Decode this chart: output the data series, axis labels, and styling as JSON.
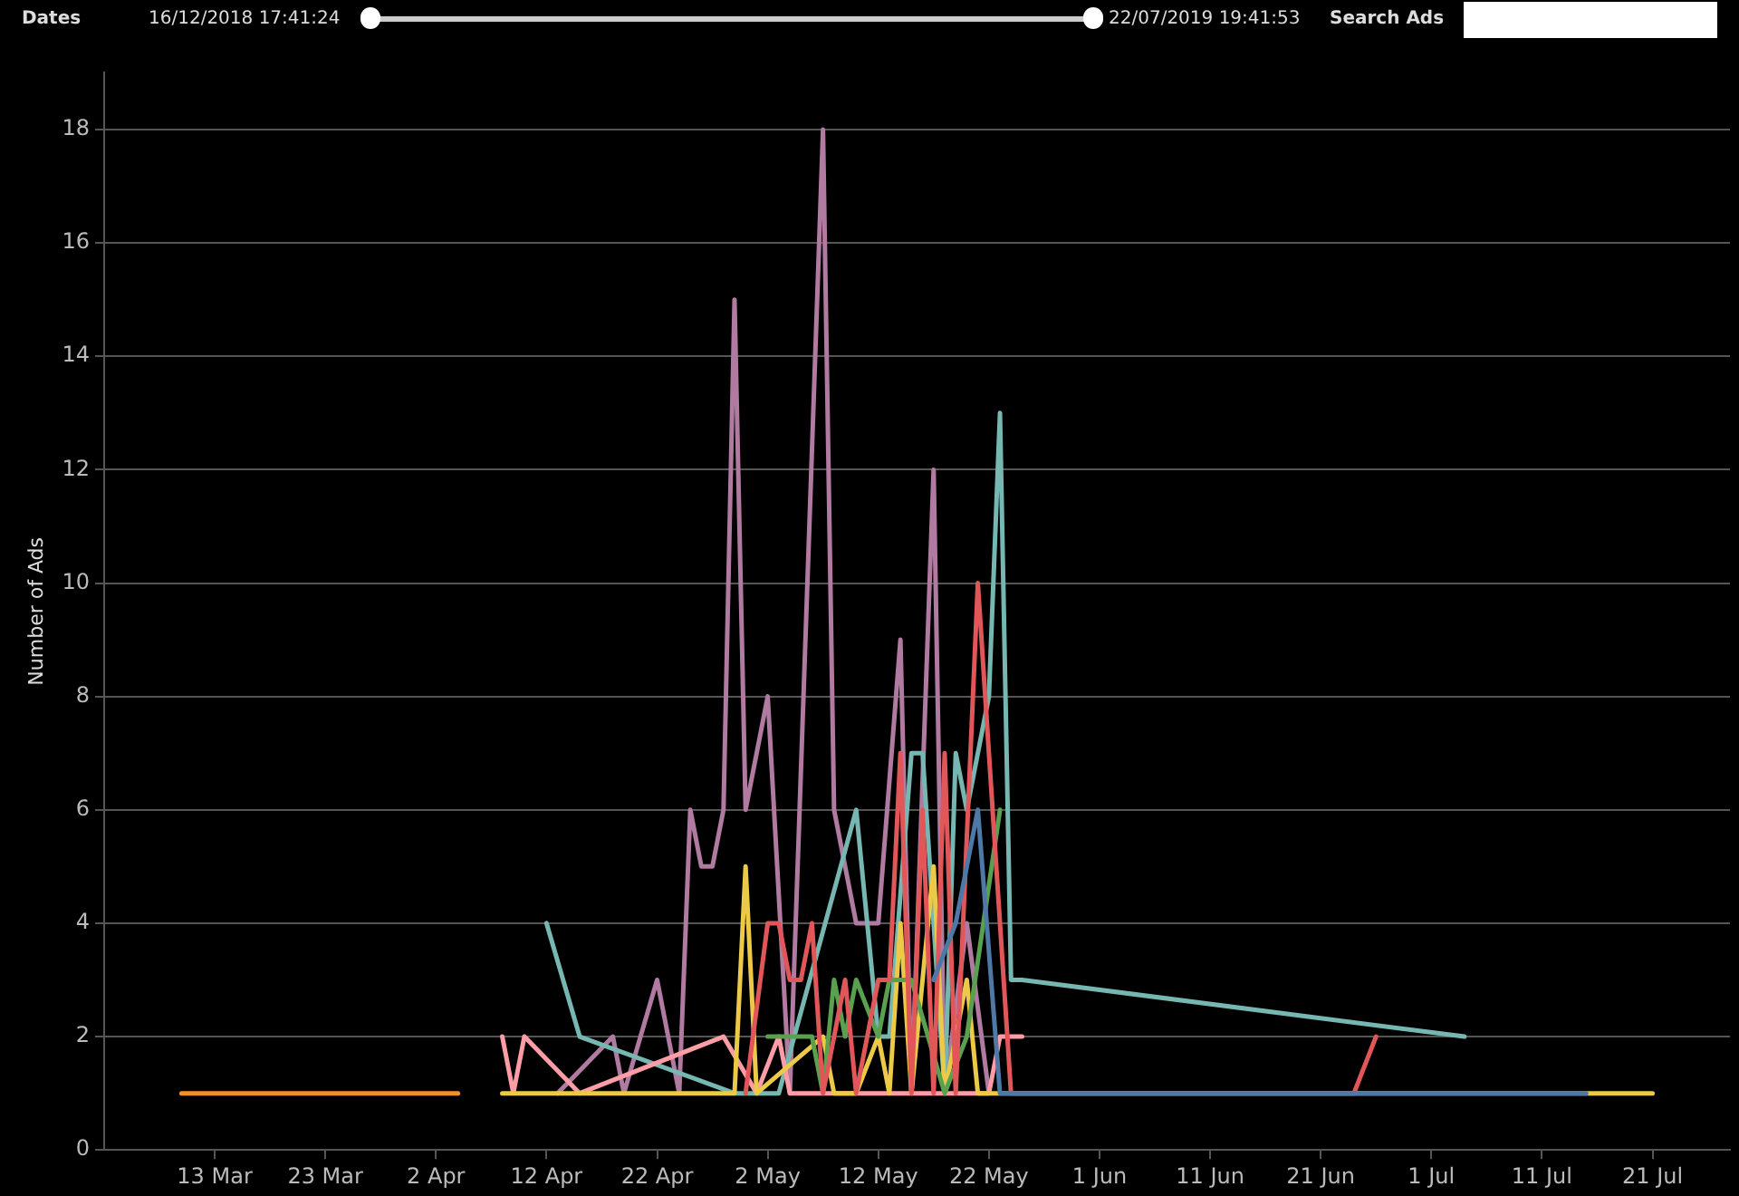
{
  "chart_data": {
    "type": "line",
    "ylabel": "Number of Ads",
    "annotations": [
      "Dates",
      "16/12/2018 17:41:24",
      "22/07/2019 19:41:53",
      "Search Ads"
    ],
    "xlim": [
      "--03-03",
      "--07-28"
    ],
    "xticks": [
      {
        "value": "--03-13",
        "label": "13 Mar"
      },
      {
        "value": "--03-23",
        "label": "23 Mar"
      },
      {
        "value": "--04-02",
        "label": "2 Apr"
      },
      {
        "value": "--04-12",
        "label": "12 Apr"
      },
      {
        "value": "--04-22",
        "label": "22 Apr"
      },
      {
        "value": "--05-02",
        "label": "2 May"
      },
      {
        "value": "--05-12",
        "label": "12 May"
      },
      {
        "value": "--05-22",
        "label": "22 May"
      },
      {
        "value": "--06-01",
        "label": "1 Jun"
      },
      {
        "value": "--06-11",
        "label": "11 Jun"
      },
      {
        "value": "--06-21",
        "label": "21 Jun"
      },
      {
        "value": "--07-01",
        "label": "1 Jul"
      },
      {
        "value": "--07-11",
        "label": "11 Jul"
      },
      {
        "value": "--07-21",
        "label": "21 Jul"
      }
    ],
    "ylim": [
      0,
      19
    ],
    "yticks": [
      0,
      2,
      4,
      6,
      8,
      10,
      12,
      14,
      16,
      18
    ],
    "grid": "y",
    "legend": false,
    "marker": "none",
    "line_style": "solid",
    "series": [
      {
        "color": "#f28e2b",
        "x": [
          "--03-10",
          "--03-29",
          "--04-04"
        ],
        "values": [
          1,
          1,
          1
        ]
      },
      {
        "color": "#b07aa1",
        "x": [
          "--04-13",
          "--04-18",
          "--04-19",
          "--04-22",
          "--04-24",
          "--04-25",
          "--04-26",
          "--04-27",
          "--04-28",
          "--04-29",
          "--04-30",
          "--05-02",
          "--05-04",
          "--05-07",
          "--05-08",
          "--05-10",
          "--05-12",
          "--05-14",
          "--05-15",
          "--05-17",
          "--05-18",
          "--05-20",
          "--05-22"
        ],
        "values": [
          1,
          2,
          1,
          3,
          1,
          6,
          5,
          5,
          6,
          15,
          6,
          8,
          1,
          18,
          6,
          4,
          4,
          9,
          1,
          12,
          1,
          4,
          1
        ]
      },
      {
        "color": "#76b7b2",
        "x": [
          "--04-12",
          "--04-15",
          "--04-29",
          "--05-03",
          "--05-10",
          "--05-12",
          "--05-13",
          "--05-15",
          "--05-16",
          "--05-18",
          "--05-19",
          "--05-20",
          "--05-22",
          "--05-23",
          "--05-24",
          "--05-25",
          "--07-04"
        ],
        "values": [
          4,
          2,
          1,
          1,
          6,
          2,
          2,
          7,
          7,
          1,
          7,
          6,
          8,
          13,
          3,
          3,
          2
        ]
      },
      {
        "color": "#ff9da7",
        "x": [
          "--04-08",
          "--04-09",
          "--04-10",
          "--04-15",
          "--04-28",
          "--05-01",
          "--05-03",
          "--05-04",
          "--05-22",
          "--05-23",
          "--05-25"
        ],
        "values": [
          2,
          1,
          2,
          1,
          2,
          1,
          2,
          1,
          1,
          2,
          2
        ]
      },
      {
        "color": "#edc948",
        "x": [
          "--04-08",
          "--04-29",
          "--04-30",
          "--05-01",
          "--05-07",
          "--05-08",
          "--05-10",
          "--05-12",
          "--05-13",
          "--05-14",
          "--05-15",
          "--05-17",
          "--05-18",
          "--05-20",
          "--05-21",
          "--05-23",
          "--07-21"
        ],
        "values": [
          1,
          1,
          5,
          1,
          2,
          1,
          1,
          2,
          1,
          4,
          1,
          5,
          1,
          3,
          1,
          1,
          1
        ]
      },
      {
        "color": "#59a14f",
        "x": [
          "--05-02",
          "--05-06",
          "--05-07",
          "--05-08",
          "--05-09",
          "--05-10",
          "--05-12",
          "--05-13",
          "--05-15",
          "--05-18",
          "--05-20",
          "--05-23"
        ],
        "values": [
          2,
          2,
          1,
          3,
          2,
          3,
          2,
          3,
          3,
          1,
          2,
          6
        ]
      },
      {
        "color": "#e15759",
        "x": [
          "--04-30",
          "--05-02",
          "--05-03",
          "--05-04",
          "--05-05",
          "--05-06",
          "--05-07",
          "--05-09",
          "--05-10",
          "--05-12",
          "--05-13",
          "--05-14",
          "--05-15",
          "--05-16",
          "--05-17",
          "--05-18",
          "--05-19",
          "--05-21",
          "--05-24",
          "--06-24",
          "--06-26"
        ],
        "values": [
          1,
          4,
          4,
          3,
          3,
          4,
          1,
          3,
          1,
          3,
          3,
          7,
          1,
          6,
          1,
          7,
          1,
          10,
          1,
          1,
          2
        ]
      },
      {
        "color": "#4e79a7",
        "x": [
          "--05-17",
          "--05-19",
          "--05-21",
          "--05-23",
          "--07-15"
        ],
        "values": [
          3,
          4,
          6,
          1,
          1
        ]
      }
    ]
  }
}
